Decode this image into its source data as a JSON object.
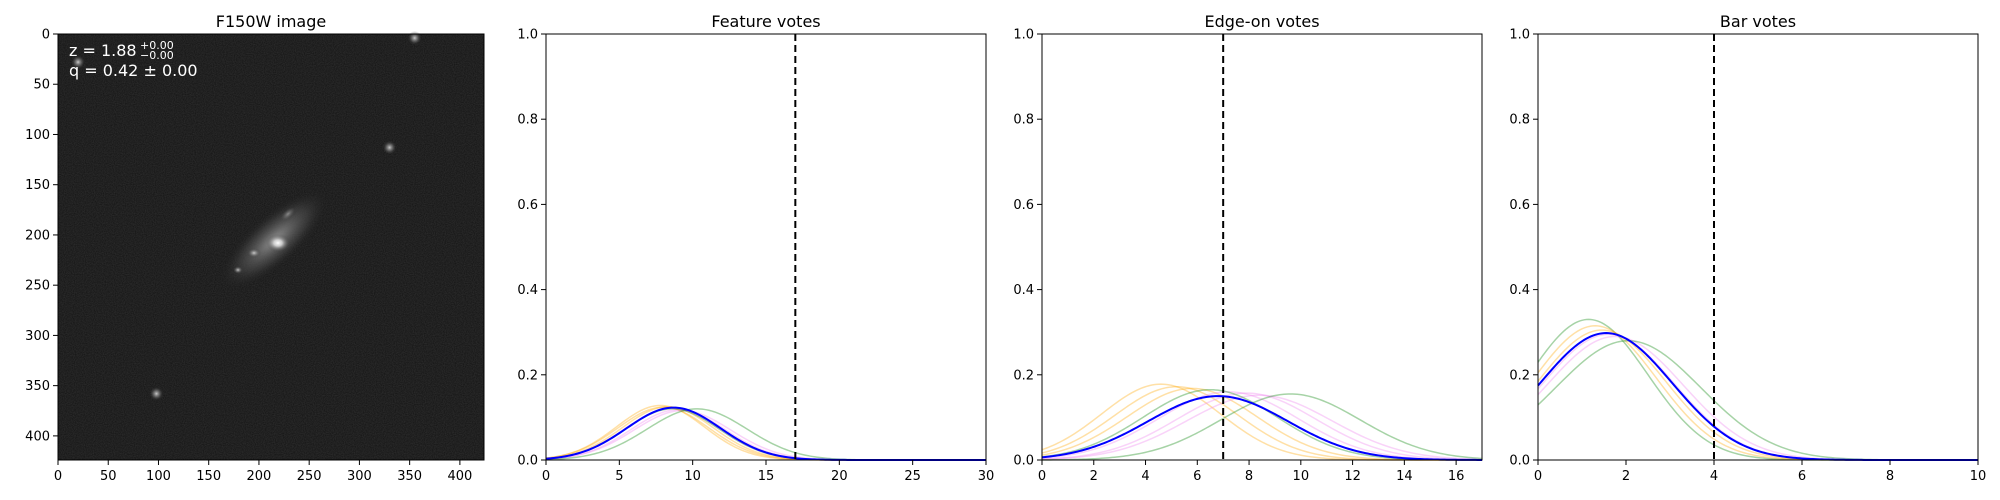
{
  "figure": {
    "background": "#ffffff"
  },
  "chart_data": [
    {
      "type": "image",
      "title": "F150W image",
      "annotations": {
        "z_prefix": "z = 1.88",
        "z_upper": "+0.00",
        "z_lower": "−0.00",
        "q_text": "q = 0.42 ± 0.00"
      },
      "xlim": [
        0,
        424
      ],
      "ylim": [
        424,
        0
      ],
      "x_ticks": [
        0,
        50,
        100,
        150,
        200,
        250,
        300,
        350,
        400
      ],
      "y_ticks": [
        0,
        50,
        100,
        150,
        200,
        250,
        300,
        350,
        400
      ],
      "colormap": "gray",
      "sources": [
        {
          "x": 215,
          "y": 205,
          "kind": "main-galaxy"
        },
        {
          "x": 330,
          "y": 113,
          "kind": "compact"
        },
        {
          "x": 98,
          "y": 358,
          "kind": "compact"
        },
        {
          "x": 20,
          "y": 28,
          "kind": "compact"
        },
        {
          "x": 355,
          "y": 4,
          "kind": "compact"
        }
      ]
    },
    {
      "type": "line",
      "title": "Feature votes",
      "xlim": [
        0,
        30
      ],
      "ylim": [
        0,
        1.0
      ],
      "x_ticks": [
        0,
        5,
        10,
        15,
        20,
        25,
        30
      ],
      "y_ticks": [
        0.0,
        0.2,
        0.4,
        0.6,
        0.8,
        1.0
      ],
      "x_tick_labels": [
        "0",
        "5",
        "10",
        "15",
        "20",
        "25",
        "30"
      ],
      "y_tick_labels": [
        "0.0",
        "0.2",
        "0.4",
        "0.6",
        "0.8",
        "1.0"
      ],
      "vline": 17,
      "n_trials": 30,
      "series": [
        {
          "color": "#ffa500",
          "mean": 7.8,
          "std": 3.0,
          "peak": 0.128
        },
        {
          "color": "#ffa500",
          "mean": 8.0,
          "std": 3.1,
          "peak": 0.124
        },
        {
          "color": "#ffa500",
          "mean": 8.3,
          "std": 3.1,
          "peak": 0.125
        },
        {
          "color": "#ee82ee",
          "mean": 8.6,
          "std": 3.2,
          "peak": 0.122
        },
        {
          "color": "#ee82ee",
          "mean": 9.0,
          "std": 3.2,
          "peak": 0.118
        },
        {
          "color": "#ee82ee",
          "mean": 9.3,
          "std": 3.3,
          "peak": 0.116
        },
        {
          "color": "#008000",
          "mean": 10.3,
          "std": 3.4,
          "peak": 0.12
        },
        {
          "color": "#008000",
          "mean": 8.6,
          "std": 3.2,
          "peak": 0.12
        },
        {
          "color": "#0000ff",
          "mean": 8.7,
          "std": 3.2,
          "peak": 0.123,
          "main": true
        }
      ]
    },
    {
      "type": "line",
      "title": "Edge-on votes",
      "xlim": [
        0,
        17
      ],
      "ylim": [
        0,
        1.0
      ],
      "x_ticks": [
        0,
        2,
        4,
        6,
        8,
        10,
        12,
        14,
        16
      ],
      "y_ticks": [
        0.0,
        0.2,
        0.4,
        0.6,
        0.8,
        1.0
      ],
      "x_tick_labels": [
        "0",
        "2",
        "4",
        "6",
        "8",
        "10",
        "12",
        "14",
        "16"
      ],
      "y_tick_labels": [
        "0.0",
        "0.2",
        "0.4",
        "0.6",
        "0.8",
        "1.0"
      ],
      "vline": 7,
      "n_trials": 17,
      "series": [
        {
          "color": "#ffa500",
          "mean": 4.6,
          "std": 2.3,
          "peak": 0.178
        },
        {
          "color": "#ffa500",
          "mean": 5.2,
          "std": 2.4,
          "peak": 0.172
        },
        {
          "color": "#ffa500",
          "mean": 5.8,
          "std": 2.5,
          "peak": 0.168
        },
        {
          "color": "#ee82ee",
          "mean": 7.2,
          "std": 2.7,
          "peak": 0.16
        },
        {
          "color": "#ee82ee",
          "mean": 7.9,
          "std": 2.7,
          "peak": 0.157
        },
        {
          "color": "#ee82ee",
          "mean": 8.4,
          "std": 2.8,
          "peak": 0.152
        },
        {
          "color": "#008000",
          "mean": 9.6,
          "std": 2.7,
          "peak": 0.155
        },
        {
          "color": "#008000",
          "mean": 6.5,
          "std": 2.6,
          "peak": 0.165
        },
        {
          "color": "#0000ff",
          "mean": 6.8,
          "std": 2.7,
          "peak": 0.15,
          "main": true
        }
      ]
    },
    {
      "type": "line",
      "title": "Bar votes",
      "xlim": [
        0,
        10
      ],
      "ylim": [
        0,
        1.0
      ],
      "x_ticks": [
        0,
        2,
        4,
        6,
        8,
        10
      ],
      "y_ticks": [
        0.0,
        0.2,
        0.4,
        0.6,
        0.8,
        1.0
      ],
      "x_tick_labels": [
        "0",
        "2",
        "4",
        "6",
        "8",
        "10"
      ],
      "y_tick_labels": [
        "0.0",
        "0.2",
        "0.4",
        "0.6",
        "0.8",
        "1.0"
      ],
      "vline": 4,
      "n_trials": 10,
      "series": [
        {
          "color": "#008000",
          "mean": 1.15,
          "std": 1.35,
          "peak": 0.33
        },
        {
          "color": "#ffa500",
          "mean": 1.3,
          "std": 1.4,
          "peak": 0.315
        },
        {
          "color": "#ffa500",
          "mean": 1.45,
          "std": 1.45,
          "peak": 0.305
        },
        {
          "color": "#ee82ee",
          "mean": 1.6,
          "std": 1.5,
          "peak": 0.295
        },
        {
          "color": "#ee82ee",
          "mean": 1.75,
          "std": 1.55,
          "peak": 0.29
        },
        {
          "color": "#008000",
          "mean": 2.05,
          "std": 1.65,
          "peak": 0.28
        },
        {
          "color": "#0000ff",
          "mean": 1.55,
          "std": 1.5,
          "peak": 0.298,
          "main": true
        }
      ]
    }
  ]
}
